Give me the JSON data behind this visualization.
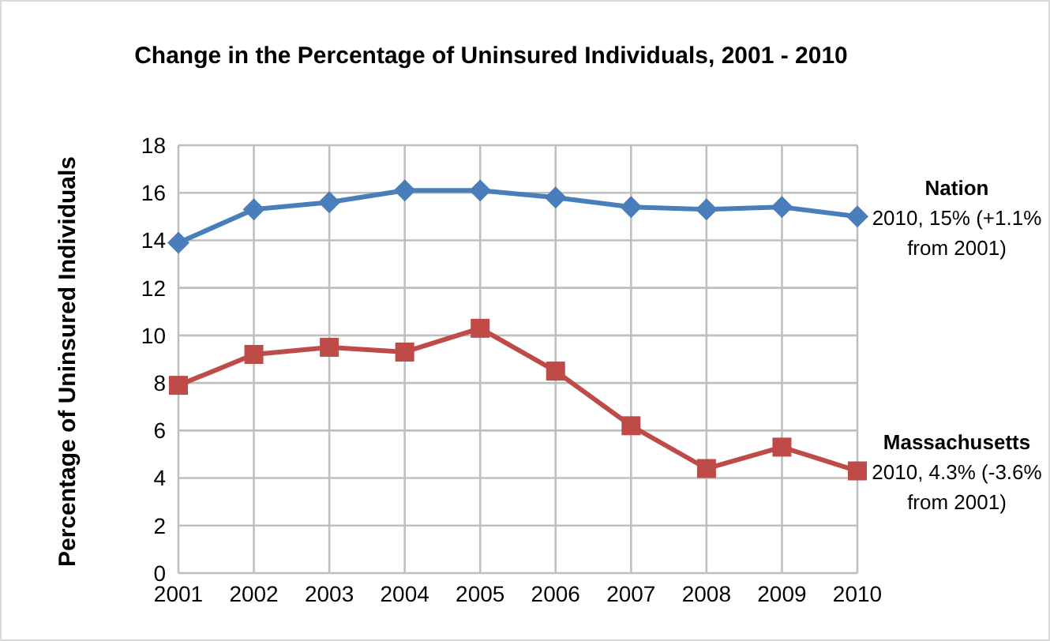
{
  "chart_data": {
    "type": "line",
    "title": "Change in the Percentage of Uninsured Individuals, 2001 - 2010",
    "ylabel": "Percentage of Uninsured Individuals",
    "categories": [
      "2001",
      "2002",
      "2003",
      "2004",
      "2005",
      "2006",
      "2007",
      "2008",
      "2009",
      "2010"
    ],
    "series": [
      {
        "name": "Nation",
        "color": "#4a7ebb",
        "marker": "diamond",
        "values": [
          13.9,
          15.3,
          15.6,
          16.1,
          16.1,
          15.8,
          15.4,
          15.3,
          15.4,
          15.0
        ]
      },
      {
        "name": "Massachusetts",
        "color": "#be4b48",
        "marker": "square",
        "values": [
          7.9,
          9.2,
          9.5,
          9.3,
          10.3,
          8.5,
          6.2,
          4.4,
          5.3,
          4.3
        ]
      }
    ],
    "annotations": [
      {
        "text": "2010, 15% (+1.1% from 2001)",
        "x": "2010",
        "y": 15
      },
      {
        "text": "2010, 4.3% (-3.6% from 2001)",
        "x": "2010",
        "y": 4.3
      }
    ],
    "ylim": [
      0,
      18
    ],
    "yticks": [
      0,
      2,
      4,
      6,
      8,
      10,
      12,
      14,
      16,
      18
    ],
    "grid": true
  }
}
